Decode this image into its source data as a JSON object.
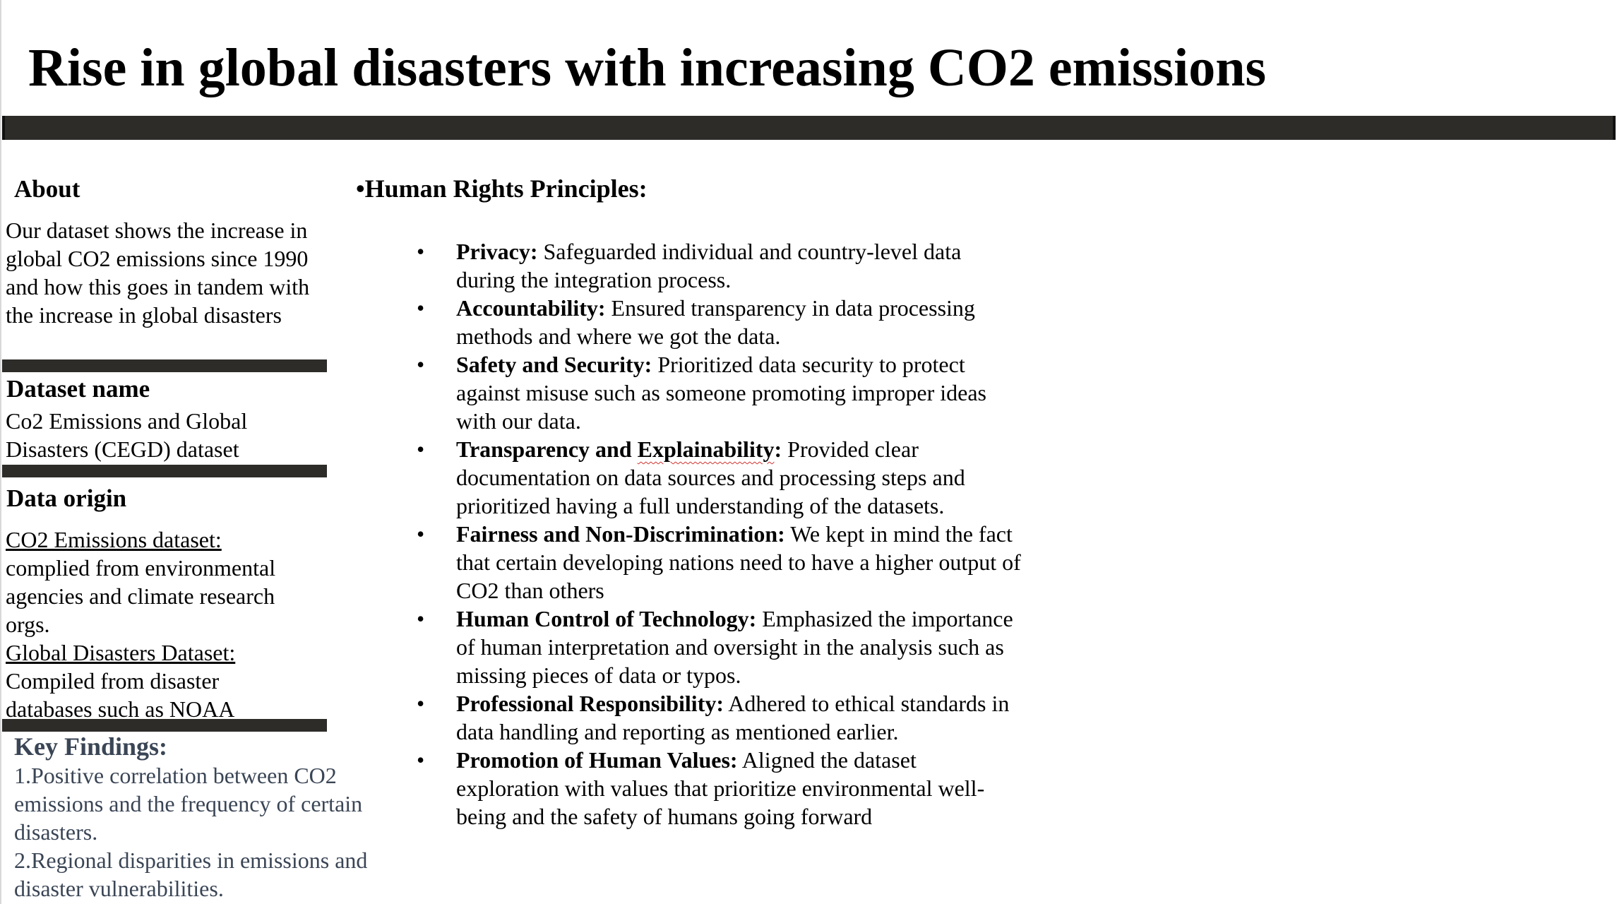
{
  "title": "Rise in global disasters with increasing CO2 emissions",
  "sidebar": {
    "about": {
      "heading": "About",
      "text": "Our dataset shows the increase in global CO2 emissions since 1990 and how this goes in tandem with the increase in global disasters"
    },
    "dataset_name": {
      "heading": "Dataset name",
      "text": "Co2 Emissions and Global Disasters (CEGD) dataset"
    },
    "data_origin": {
      "heading": "Data origin",
      "co2_label": "CO2 Emissions dataset:",
      "co2_text": "complied from environmental agencies and climate research orgs.",
      "disasters_label": "Global Disasters Dataset:",
      "disasters_text": "Compiled from disaster databases such as NOAA"
    },
    "key_findings": {
      "heading": "Key Findings:",
      "items": [
        "1.Positive correlation between CO2 emissions and the frequency of certain disasters.",
        "2.Regional disparities in emissions and disaster vulnerabilities."
      ]
    }
  },
  "human_rights": {
    "heading": "•Human Rights Principles:",
    "bullet_char": "•",
    "principles": [
      {
        "term": "Privacy:",
        "text": " Safeguarded individual and country-level data during the integration process."
      },
      {
        "term": "Accountability:",
        "text": " Ensured transparency in data processing methods and where we got the data."
      },
      {
        "term": "Safety and Security:",
        "text": " Prioritized data security to protect against misuse such as someone promoting improper ideas with our data."
      },
      {
        "term_a": "Transparency and ",
        "term_b": "Explainability",
        "term_c": ":",
        "text": " Provided clear documentation on data sources and processing steps and prioritized having a full understanding of the datasets."
      },
      {
        "term": "Fairness and Non-Discrimination:",
        "text": " We kept in mind the fact that certain developing nations need to have a higher output of CO2 than others"
      },
      {
        "term": "Human Control of Technology:",
        "text": " Emphasized the importance of human interpretation and oversight in the analysis such as missing pieces of data or typos."
      },
      {
        "term": "Professional Responsibility:",
        "text": " Adhered to ethical standards in data handling and reporting as mentioned earlier."
      },
      {
        "term": "Promotion of Human Values:",
        "text": " Aligned the dataset exploration with values that prioritize environmental well-being and the safety of humans going forward"
      }
    ]
  }
}
